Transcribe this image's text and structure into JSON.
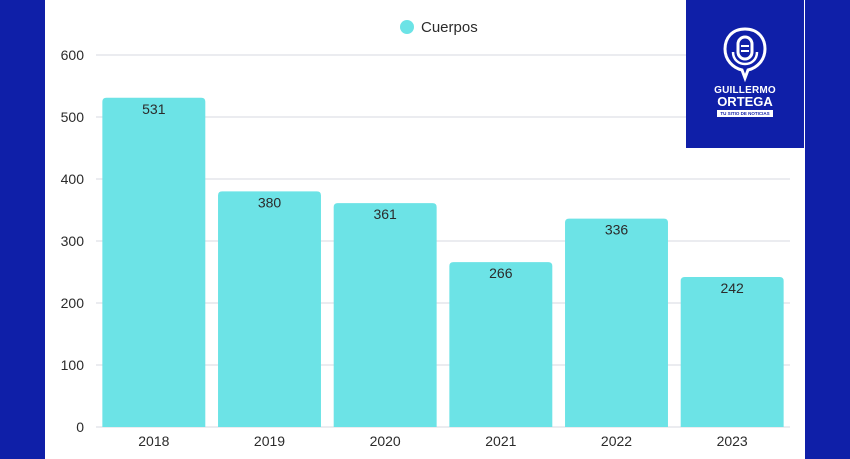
{
  "chart_data": {
    "type": "bar",
    "categories": [
      "2018",
      "2019",
      "2020",
      "2021",
      "2022",
      "2023"
    ],
    "series": [
      {
        "name": "Cuerpos",
        "values": [
          531,
          380,
          361,
          266,
          336,
          242
        ]
      }
    ],
    "ylim": [
      0,
      600
    ],
    "yticks": [
      0,
      100,
      200,
      300,
      400,
      500,
      600
    ],
    "grid": true,
    "legend_position": "top-center",
    "colors": {
      "bar": "#6ce3e6",
      "grid": "#d7d9e0",
      "text": "#2b2b2b",
      "background": "#0f1fa8"
    }
  },
  "logo": {
    "line1": "GUILLERMO",
    "line2": "ORTEGA",
    "tagline": "TU SITIO DE NOTICIAS",
    "icon": "microphone-icon"
  }
}
